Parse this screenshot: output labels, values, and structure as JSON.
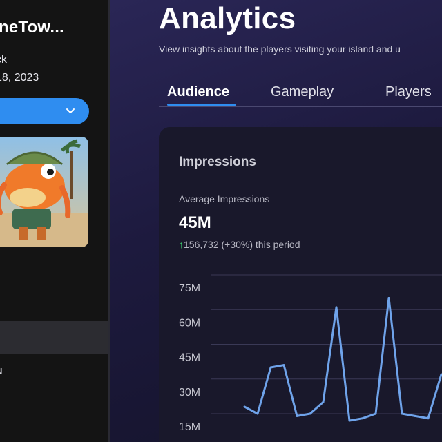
{
  "sidebar": {
    "title": "neTow...",
    "author": "ck",
    "date": "18, 2023",
    "bottom_label": "N",
    "dropdown_label": ""
  },
  "main": {
    "title": "Analytics",
    "subtitle": "View insights about the players visiting your island and u",
    "tabs": [
      {
        "label": "Audience",
        "active": true
      },
      {
        "label": "Gameplay",
        "active": false
      },
      {
        "label": "Players",
        "active": false
      }
    ],
    "card": {
      "title": "Impressions",
      "average_label": "Average Impressions",
      "average_value": "45M",
      "delta_arrow": "↑",
      "delta_text": "156,732 (+30%) this period"
    }
  },
  "colors": {
    "accent": "#2f8df0",
    "line": "#6fa3ea",
    "positive": "#3ccf6e"
  },
  "icons": {
    "dropdown": "chevron-down-icon",
    "delta": "arrow-up-icon"
  },
  "chart_data": {
    "type": "line",
    "title": "Impressions",
    "ylabel": "",
    "xlabel": "",
    "ytick_labels": [
      "15M",
      "30M",
      "45M",
      "60M",
      "75M"
    ],
    "yticks": [
      15,
      30,
      45,
      60,
      75
    ],
    "ylim": [
      10,
      80
    ],
    "grid": true,
    "series": [
      {
        "values": [
          18,
          15,
          35,
          36,
          14,
          15,
          20,
          61,
          12,
          13,
          15,
          65,
          15,
          14,
          13,
          32
        ]
      }
    ]
  }
}
